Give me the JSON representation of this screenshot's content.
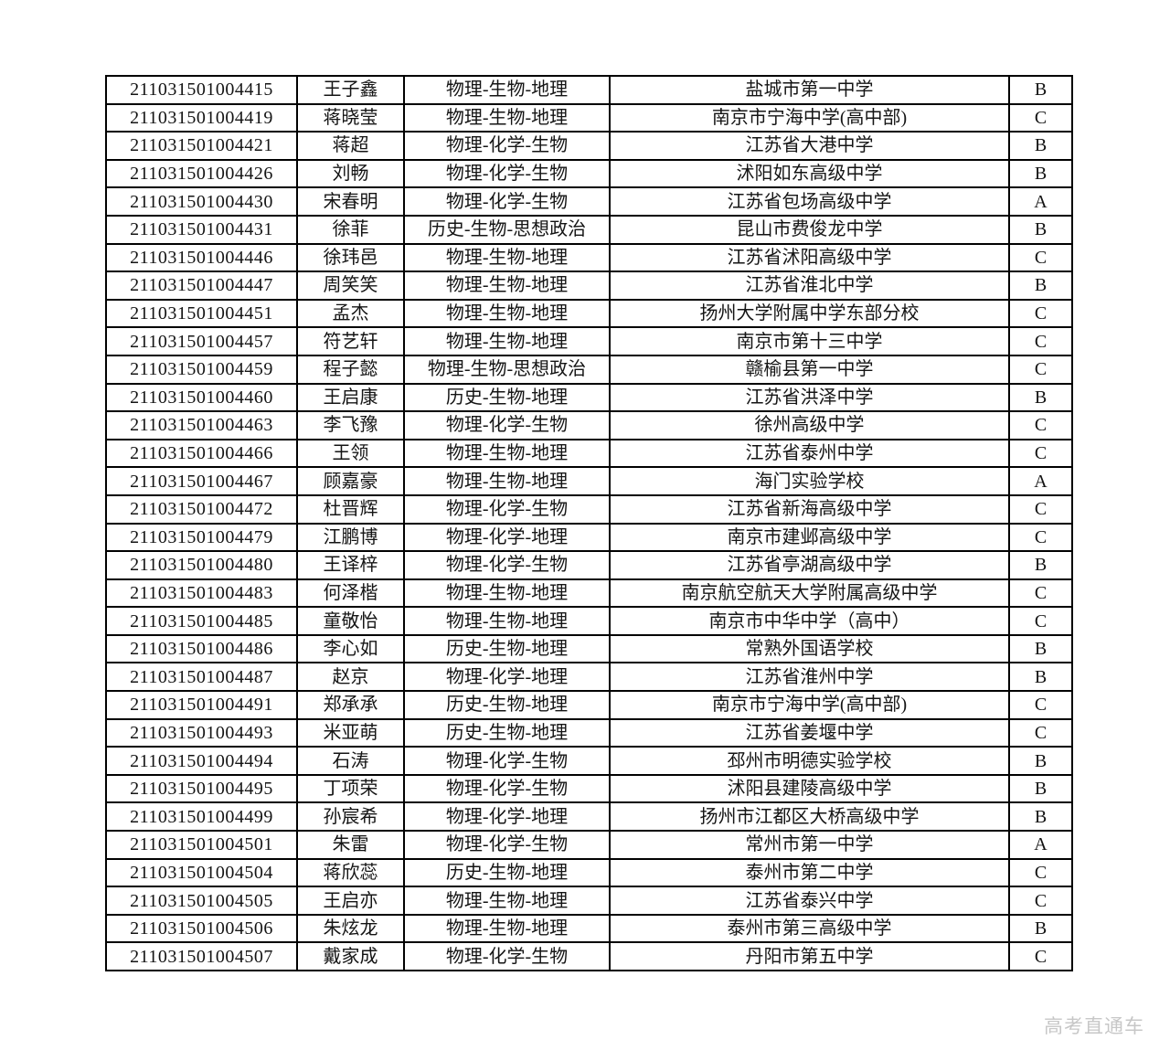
{
  "table": {
    "column_keys": [
      "id",
      "name",
      "subjects",
      "school",
      "grade"
    ],
    "rows": [
      [
        "211031501004415",
        "王子鑫",
        "物理-生物-地理",
        "盐城市第一中学",
        "B"
      ],
      [
        "211031501004419",
        "蒋晓莹",
        "物理-生物-地理",
        "南京市宁海中学(高中部)",
        "C"
      ],
      [
        "211031501004421",
        "蒋超",
        "物理-化学-生物",
        "江苏省大港中学",
        "B"
      ],
      [
        "211031501004426",
        "刘畅",
        "物理-化学-生物",
        "沭阳如东高级中学",
        "B"
      ],
      [
        "211031501004430",
        "宋春明",
        "物理-化学-生物",
        "江苏省包场高级中学",
        "A"
      ],
      [
        "211031501004431",
        "徐菲",
        "历史-生物-思想政治",
        "昆山市费俊龙中学",
        "B"
      ],
      [
        "211031501004446",
        "徐玮邑",
        "物理-生物-地理",
        "江苏省沭阳高级中学",
        "C"
      ],
      [
        "211031501004447",
        "周笑笑",
        "物理-生物-地理",
        "江苏省淮北中学",
        "B"
      ],
      [
        "211031501004451",
        "孟杰",
        "物理-生物-地理",
        "扬州大学附属中学东部分校",
        "C"
      ],
      [
        "211031501004457",
        "符艺轩",
        "物理-生物-地理",
        "南京市第十三中学",
        "C"
      ],
      [
        "211031501004459",
        "程子懿",
        "物理-生物-思想政治",
        "赣榆县第一中学",
        "C"
      ],
      [
        "211031501004460",
        "王启康",
        "历史-生物-地理",
        "江苏省洪泽中学",
        "B"
      ],
      [
        "211031501004463",
        "李飞豫",
        "物理-化学-生物",
        "徐州高级中学",
        "C"
      ],
      [
        "211031501004466",
        "王领",
        "物理-生物-地理",
        "江苏省泰州中学",
        "C"
      ],
      [
        "211031501004467",
        "顾嘉豪",
        "物理-生物-地理",
        "海门实验学校",
        "A"
      ],
      [
        "211031501004472",
        "杜晋辉",
        "物理-化学-生物",
        "江苏省新海高级中学",
        "C"
      ],
      [
        "211031501004479",
        "江鹏博",
        "物理-化学-地理",
        "南京市建邺高级中学",
        "C"
      ],
      [
        "211031501004480",
        "王译梓",
        "物理-化学-生物",
        "江苏省亭湖高级中学",
        "B"
      ],
      [
        "211031501004483",
        "何泽楷",
        "物理-生物-地理",
        "南京航空航天大学附属高级中学",
        "C"
      ],
      [
        "211031501004485",
        "童敬怡",
        "物理-生物-地理",
        "南京市中华中学（高中）",
        "C"
      ],
      [
        "211031501004486",
        "李心如",
        "历史-生物-地理",
        "常熟外国语学校",
        "B"
      ],
      [
        "211031501004487",
        "赵京",
        "物理-化学-地理",
        "江苏省淮州中学",
        "B"
      ],
      [
        "211031501004491",
        "郑承承",
        "历史-生物-地理",
        "南京市宁海中学(高中部)",
        "C"
      ],
      [
        "211031501004493",
        "米亚萌",
        "历史-生物-地理",
        "江苏省姜堰中学",
        "C"
      ],
      [
        "211031501004494",
        "石涛",
        "物理-化学-生物",
        "邳州市明德实验学校",
        "B"
      ],
      [
        "211031501004495",
        "丁项荣",
        "物理-化学-生物",
        "沭阳县建陵高级中学",
        "B"
      ],
      [
        "211031501004499",
        "孙宸希",
        "物理-化学-地理",
        "扬州市江都区大桥高级中学",
        "B"
      ],
      [
        "211031501004501",
        "朱雷",
        "物理-化学-生物",
        "常州市第一中学",
        "A"
      ],
      [
        "211031501004504",
        "蒋欣蕊",
        "历史-生物-地理",
        "泰州市第二中学",
        "C"
      ],
      [
        "211031501004505",
        "王启亦",
        "物理-生物-地理",
        "江苏省泰兴中学",
        "C"
      ],
      [
        "211031501004506",
        "朱炫龙",
        "物理-生物-地理",
        "泰州市第三高级中学",
        "B"
      ],
      [
        "211031501004507",
        "戴家成",
        "物理-化学-生物",
        "丹阳市第五中学",
        "C"
      ]
    ]
  },
  "watermark": {
    "label": "高考直通车",
    "color": "#c7c7c7"
  }
}
